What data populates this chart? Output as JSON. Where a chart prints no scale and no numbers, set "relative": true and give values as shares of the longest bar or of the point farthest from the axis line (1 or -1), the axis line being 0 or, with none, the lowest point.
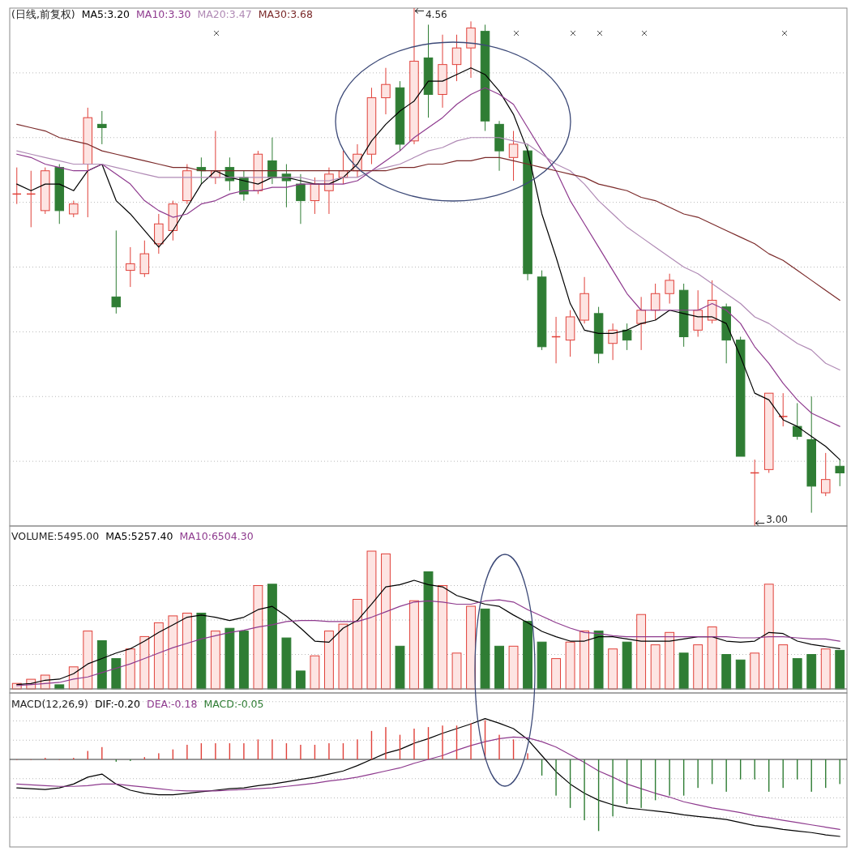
{
  "chart_data": [
    {
      "type": "candlestick",
      "title": "(日线,前复权)",
      "legend": "top left",
      "grid": true,
      "categories": [
        null,
        null,
        null,
        null,
        null,
        null,
        null,
        null,
        null,
        null,
        null,
        null,
        null,
        null,
        null,
        null,
        null,
        null,
        null,
        null,
        null,
        null,
        null,
        null,
        null,
        null,
        null,
        null,
        null,
        null,
        null,
        null,
        null,
        null,
        null,
        null,
        null,
        null,
        null,
        null,
        null,
        null,
        null,
        null,
        null,
        null,
        null,
        null,
        null,
        null,
        null,
        null,
        null,
        null,
        null,
        null,
        null,
        null,
        null
      ],
      "ohlc": [
        [
          4.0,
          4.08,
          3.97,
          4.0
        ],
        [
          4.0,
          4.07,
          3.9,
          4.0
        ],
        [
          3.95,
          4.08,
          3.94,
          4.07
        ],
        [
          4.08,
          4.09,
          3.91,
          3.95
        ],
        [
          3.94,
          3.98,
          3.93,
          3.97
        ],
        [
          4.09,
          4.26,
          3.93,
          4.23
        ],
        [
          4.21,
          4.25,
          4.15,
          4.2
        ],
        [
          3.69,
          3.89,
          3.64,
          3.66
        ],
        [
          3.77,
          3.84,
          3.72,
          3.79
        ],
        [
          3.76,
          3.86,
          3.75,
          3.82
        ],
        [
          3.85,
          3.94,
          3.82,
          3.91
        ],
        [
          3.89,
          3.98,
          3.86,
          3.97
        ],
        [
          3.98,
          4.09,
          3.97,
          4.07
        ],
        [
          4.08,
          4.11,
          4.03,
          4.07
        ],
        [
          4.05,
          4.19,
          4.03,
          4.07
        ],
        [
          4.08,
          4.11,
          4.01,
          4.04
        ],
        [
          4.05,
          4.07,
          3.98,
          4.0
        ],
        [
          4.01,
          4.13,
          4.0,
          4.12
        ],
        [
          4.1,
          4.17,
          4.03,
          4.05
        ],
        [
          4.06,
          4.09,
          3.96,
          4.04
        ],
        [
          4.03,
          4.06,
          3.91,
          3.98
        ],
        [
          3.98,
          4.05,
          3.94,
          4.03
        ],
        [
          4.01,
          4.08,
          3.94,
          4.06
        ],
        [
          4.05,
          4.13,
          4.03,
          4.07
        ],
        [
          4.07,
          4.15,
          4.05,
          4.12
        ],
        [
          4.12,
          4.32,
          4.09,
          4.29
        ],
        [
          4.29,
          4.38,
          4.24,
          4.33
        ],
        [
          4.32,
          4.34,
          4.13,
          4.15
        ],
        [
          4.16,
          4.56,
          4.15,
          4.4
        ],
        [
          4.41,
          4.51,
          4.23,
          4.3
        ],
        [
          4.3,
          4.48,
          4.26,
          4.39
        ],
        [
          4.39,
          4.48,
          4.34,
          4.44
        ],
        [
          4.44,
          4.52,
          4.35,
          4.5
        ],
        [
          4.49,
          4.51,
          4.19,
          4.22
        ],
        [
          4.21,
          4.22,
          4.07,
          4.13
        ],
        [
          4.11,
          4.19,
          4.04,
          4.15
        ],
        [
          4.13,
          4.15,
          3.74,
          3.76
        ],
        [
          3.75,
          3.77,
          3.53,
          3.54
        ],
        [
          3.57,
          3.63,
          3.49,
          3.57
        ],
        [
          3.56,
          3.65,
          3.51,
          3.63
        ],
        [
          3.62,
          3.75,
          3.61,
          3.7
        ],
        [
          3.64,
          3.66,
          3.49,
          3.52
        ],
        [
          3.55,
          3.61,
          3.5,
          3.59
        ],
        [
          3.59,
          3.61,
          3.53,
          3.56
        ],
        [
          3.61,
          3.69,
          3.53,
          3.65
        ],
        [
          3.65,
          3.73,
          3.62,
          3.7
        ],
        [
          3.7,
          3.76,
          3.67,
          3.74
        ],
        [
          3.71,
          3.73,
          3.54,
          3.57
        ],
        [
          3.59,
          3.71,
          3.57,
          3.65
        ],
        [
          3.62,
          3.74,
          3.61,
          3.68
        ],
        [
          3.66,
          3.67,
          3.49,
          3.56
        ],
        [
          3.56,
          3.57,
          3.21,
          3.21
        ],
        [
          3.16,
          3.2,
          3.0,
          3.16
        ],
        [
          3.17,
          3.4,
          3.16,
          3.4
        ],
        [
          3.33,
          3.4,
          3.3,
          3.33
        ],
        [
          3.3,
          3.37,
          3.26,
          3.27
        ],
        [
          3.26,
          3.39,
          3.04,
          3.12
        ],
        [
          3.1,
          3.22,
          3.09,
          3.14
        ],
        [
          3.18,
          3.2,
          3.12,
          3.16
        ]
      ],
      "series": [
        {
          "type": "line",
          "name": "MA5:3.20",
          "color": "#000000",
          "values": [
            4.03,
            4.01,
            4.03,
            4.03,
            4.01,
            4.07,
            4.09,
            3.98,
            3.94,
            3.89,
            3.84,
            3.89,
            3.96,
            4.03,
            4.07,
            4.05,
            4.04,
            4.03,
            4.05,
            4.05,
            4.04,
            4.03,
            4.03,
            4.05,
            4.09,
            4.16,
            4.21,
            4.25,
            4.28,
            4.34,
            4.34,
            4.36,
            4.38,
            4.36,
            4.31,
            4.24,
            4.13,
            3.94,
            3.81,
            3.67,
            3.59,
            3.58,
            3.58,
            3.59,
            3.61,
            3.62,
            3.65,
            3.64,
            3.63,
            3.63,
            3.61,
            3.51,
            3.4,
            3.38,
            3.32,
            3.3,
            3.27,
            3.24,
            3.2
          ]
        },
        {
          "type": "line",
          "name": "MA10:3.30",
          "color": "#8e3a8e",
          "values": [
            4.12,
            4.11,
            4.09,
            4.08,
            4.07,
            4.07,
            4.09,
            4.06,
            4.03,
            3.98,
            3.95,
            3.93,
            3.94,
            3.97,
            3.98,
            4.0,
            4.01,
            4.01,
            4.02,
            4.02,
            4.03,
            4.03,
            4.03,
            4.03,
            4.04,
            4.07,
            4.1,
            4.13,
            4.17,
            4.2,
            4.23,
            4.27,
            4.3,
            4.32,
            4.3,
            4.27,
            4.2,
            4.13,
            4.07,
            3.98,
            3.91,
            3.84,
            3.77,
            3.7,
            3.65,
            3.65,
            3.65,
            3.65,
            3.65,
            3.67,
            3.65,
            3.61,
            3.54,
            3.49,
            3.43,
            3.38,
            3.34,
            3.32,
            3.3
          ]
        },
        {
          "type": "line",
          "name": "MA20:3.47",
          "color": "#b08ab5",
          "values": [
            4.13,
            4.12,
            4.11,
            4.1,
            4.09,
            4.09,
            4.09,
            4.08,
            4.07,
            4.06,
            4.05,
            4.05,
            4.05,
            4.05,
            4.05,
            4.05,
            4.05,
            4.05,
            4.05,
            4.05,
            4.05,
            4.04,
            4.04,
            4.05,
            4.05,
            4.07,
            4.08,
            4.09,
            4.11,
            4.13,
            4.14,
            4.16,
            4.17,
            4.17,
            4.17,
            4.16,
            4.15,
            4.12,
            4.09,
            4.07,
            4.03,
            3.98,
            3.94,
            3.9,
            3.87,
            3.84,
            3.81,
            3.78,
            3.76,
            3.73,
            3.7,
            3.67,
            3.63,
            3.61,
            3.58,
            3.55,
            3.53,
            3.49,
            3.47
          ]
        },
        {
          "type": "line",
          "name": "MA30:3.68",
          "color": "#7b2a2a",
          "values": [
            4.21,
            4.2,
            4.19,
            4.17,
            4.16,
            4.15,
            4.13,
            4.12,
            4.11,
            4.1,
            4.09,
            4.08,
            4.08,
            4.07,
            4.07,
            4.07,
            4.07,
            4.07,
            4.07,
            4.07,
            4.07,
            4.07,
            4.07,
            4.07,
            4.07,
            4.07,
            4.07,
            4.08,
            4.08,
            4.09,
            4.09,
            4.1,
            4.1,
            4.11,
            4.11,
            4.1,
            4.09,
            4.08,
            4.07,
            4.06,
            4.05,
            4.03,
            4.02,
            4.01,
            3.99,
            3.98,
            3.96,
            3.94,
            3.93,
            3.91,
            3.89,
            3.87,
            3.85,
            3.82,
            3.8,
            3.77,
            3.74,
            3.71,
            3.68
          ]
        }
      ],
      "annotations": [
        "4.56",
        "3.00"
      ]
    },
    {
      "type": "bar",
      "title": "VOLUME:5495.00",
      "grid": true,
      "relative": true,
      "categories": [
        null,
        null,
        null,
        null,
        null,
        null,
        null,
        null,
        null,
        null,
        null,
        null,
        null,
        null,
        null,
        null,
        null,
        null,
        null,
        null,
        null,
        null,
        null,
        null,
        null,
        null,
        null,
        null,
        null,
        null,
        null,
        null,
        null,
        null,
        null,
        null,
        null,
        null,
        null,
        null,
        null,
        null,
        null,
        null,
        null,
        null,
        null,
        null,
        null,
        null,
        null,
        null,
        null,
        null,
        null,
        null,
        null,
        null,
        null
      ],
      "series": [
        {
          "values": [
            0.04,
            0.07,
            0.1,
            0.03,
            0.16,
            0.42,
            0.35,
            0.22,
            0.29,
            0.38,
            0.48,
            0.53,
            0.55,
            0.55,
            0.42,
            0.44,
            0.42,
            0.75,
            0.76,
            0.37,
            0.13,
            0.24,
            0.42,
            0.47,
            0.65,
            1,
            0.98,
            0.31,
            0.64,
            0.85,
            0.75,
            0.26,
            0.6,
            0.58,
            0.31,
            0.31,
            0.49,
            0.34,
            0.22,
            0.34,
            0.42,
            0.42,
            0.29,
            0.34,
            0.54,
            0.32,
            0.41,
            0.26,
            0.32,
            0.45,
            0.25,
            0.21,
            0.26,
            0.76,
            0.32,
            0.22,
            0.25,
            0.29,
            0.28
          ],
          "colors": [
            "#e0413a",
            "#e0413a",
            "#e0413a",
            "#2f7d34",
            "#e0413a",
            "#e0413a",
            "#2f7d34",
            "#2f7d34",
            "#e0413a",
            "#e0413a",
            "#e0413a",
            "#e0413a",
            "#e0413a",
            "#2f7d34",
            "#e0413a",
            "#2f7d34",
            "#2f7d34",
            "#e0413a",
            "#2f7d34",
            "#2f7d34",
            "#2f7d34",
            "#e0413a",
            "#e0413a",
            "#e0413a",
            "#e0413a",
            "#e0413a",
            "#e0413a",
            "#2f7d34",
            "#e0413a",
            "#2f7d34",
            "#e0413a",
            "#e0413a",
            "#e0413a",
            "#2f7d34",
            "#2f7d34",
            "#e0413a",
            "#2f7d34",
            "#2f7d34",
            "#e0413a",
            "#e0413a",
            "#e0413a",
            "#2f7d34",
            "#e0413a",
            "#2f7d34",
            "#e0413a",
            "#e0413a",
            "#e0413a",
            "#2f7d34",
            "#e0413a",
            "#e0413a",
            "#2f7d34",
            "#2f7d34",
            "#e0413a",
            "#e0413a",
            "#e0413a",
            "#2f7d34",
            "#2f7d34",
            "#e0413a",
            "#2f7d34"
          ]
        }
      ]
    },
    {
      "type": "line",
      "legend": "top left",
      "relative": true,
      "categories": [
        null,
        null,
        null,
        null,
        null,
        null,
        null,
        null,
        null,
        null,
        null,
        null,
        null,
        null,
        null,
        null,
        null,
        null,
        null,
        null,
        null,
        null,
        null,
        null,
        null,
        null,
        null,
        null,
        null,
        null,
        null,
        null,
        null,
        null,
        null,
        null,
        null,
        null,
        null,
        null,
        null,
        null,
        null,
        null,
        null,
        null,
        null,
        null,
        null,
        null,
        null,
        null,
        null,
        null,
        null,
        null,
        null,
        null,
        null
      ],
      "series": [
        {
          "name": "MA5:5257.40",
          "color": "#000000",
          "values": [
            0.04,
            0.05,
            0.08,
            0.09,
            0.14,
            0.23,
            0.28,
            0.33,
            0.37,
            0.44,
            0.52,
            0.59,
            0.66,
            0.68,
            0.66,
            0.63,
            0.66,
            0.73,
            0.76,
            0.67,
            0.56,
            0.44,
            0.43,
            0.56,
            0.63,
            0.78,
            0.94,
            0.96,
            1,
            0.96,
            0.94,
            0.86,
            0.82,
            0.78,
            0.76,
            0.68,
            0.61,
            0.53,
            0.48,
            0.44,
            0.44,
            0.48,
            0.48,
            0.46,
            0.44,
            0.44,
            0.44,
            0.46,
            0.48,
            0.48,
            0.44,
            0.43,
            0.44,
            0.52,
            0.51,
            0.44,
            0.41,
            0.39,
            0.37
          ]
        },
        {
          "name": "MA10:6504.30",
          "color": "#8e3a8e",
          "values": [
            0.03,
            0.04,
            0.05,
            0.06,
            0.09,
            0.11,
            0.15,
            0.19,
            0.23,
            0.28,
            0.33,
            0.38,
            0.42,
            0.46,
            0.49,
            0.52,
            0.54,
            0.57,
            0.59,
            0.62,
            0.63,
            0.63,
            0.62,
            0.62,
            0.62,
            0.66,
            0.71,
            0.76,
            0.8,
            0.81,
            0.8,
            0.78,
            0.78,
            0.81,
            0.82,
            0.8,
            0.73,
            0.67,
            0.61,
            0.56,
            0.52,
            0.51,
            0.49,
            0.48,
            0.48,
            0.48,
            0.48,
            0.48,
            0.48,
            0.48,
            0.48,
            0.47,
            0.47,
            0.48,
            0.48,
            0.47,
            0.46,
            0.46,
            0.44
          ]
        }
      ]
    },
    {
      "type": "bar",
      "title": "MACD(12,26,9)",
      "legend": "top left",
      "grid": true,
      "relative": true,
      "categories": [
        null,
        null,
        null,
        null,
        null,
        null,
        null,
        null,
        null,
        null,
        null,
        null,
        null,
        null,
        null,
        null,
        null,
        null,
        null,
        null,
        null,
        null,
        null,
        null,
        null,
        null,
        null,
        null,
        null,
        null,
        null,
        null,
        null,
        null,
        null,
        null,
        null,
        null,
        null,
        null,
        null,
        null,
        null,
        null,
        null,
        null,
        null,
        null,
        null,
        null,
        null,
        null,
        null,
        null,
        null,
        null,
        null,
        null,
        null
      ],
      "series": [
        {
          "type": "line",
          "name": "DIF:-0.20",
          "color": "#000000",
          "values": [
            -0.37,
            -0.38,
            -0.39,
            -0.37,
            -0.32,
            -0.23,
            -0.19,
            -0.32,
            -0.4,
            -0.44,
            -0.46,
            -0.46,
            -0.44,
            -0.42,
            -0.4,
            -0.38,
            -0.37,
            -0.34,
            -0.32,
            -0.29,
            -0.26,
            -0.23,
            -0.19,
            -0.15,
            -0.08,
            0,
            0.08,
            0.13,
            0.21,
            0.27,
            0.34,
            0.4,
            0.46,
            0.53,
            0.47,
            0.4,
            0.26,
            0.05,
            -0.16,
            -0.32,
            -0.44,
            -0.53,
            -0.59,
            -0.63,
            -0.65,
            -0.67,
            -0.69,
            -0.72,
            -0.74,
            -0.76,
            -0.78,
            -0.82,
            -0.86,
            -0.88,
            -0.91,
            -0.93,
            -0.95,
            -0.98,
            -1
          ]
        },
        {
          "type": "line",
          "name": "DEA:-0.18",
          "color": "#8e3a8e",
          "values": [
            -0.32,
            -0.33,
            -0.34,
            -0.35,
            -0.35,
            -0.34,
            -0.32,
            -0.32,
            -0.34,
            -0.36,
            -0.38,
            -0.4,
            -0.41,
            -0.41,
            -0.41,
            -0.4,
            -0.39,
            -0.38,
            -0.37,
            -0.35,
            -0.33,
            -0.31,
            -0.28,
            -0.26,
            -0.23,
            -0.19,
            -0.15,
            -0.11,
            -0.05,
            0,
            0.05,
            0.12,
            0.18,
            0.23,
            0.27,
            0.29,
            0.28,
            0.23,
            0.16,
            0.06,
            -0.04,
            -0.15,
            -0.23,
            -0.32,
            -0.38,
            -0.44,
            -0.49,
            -0.55,
            -0.59,
            -0.63,
            -0.66,
            -0.69,
            -0.73,
            -0.76,
            -0.79,
            -0.82,
            -0.85,
            -0.88,
            -0.91
          ]
        },
        {
          "name": "MACD:-0.05",
          "values": [
            0,
            0,
            0.02,
            0,
            0.02,
            0.11,
            0.16,
            -0.03,
            -0.02,
            0.03,
            0.08,
            0.13,
            0.19,
            0.21,
            0.21,
            0.21,
            0.21,
            0.26,
            0.26,
            0.21,
            0.19,
            0.19,
            0.21,
            0.21,
            0.26,
            0.37,
            0.42,
            0.32,
            0.4,
            0.42,
            0.44,
            0.44,
            0.47,
            0.51,
            0.32,
            0.26,
            0.08,
            -0.21,
            -0.47,
            -0.63,
            -0.79,
            -0.93,
            -0.74,
            -0.58,
            -0.63,
            -0.53,
            -0.47,
            -0.47,
            -0.37,
            -0.32,
            -0.42,
            -0.26,
            -0.26,
            -0.42,
            -0.37,
            -0.26,
            -0.42,
            -0.37,
            -0.32
          ],
          "colors": [
            "#e0413a",
            "#e0413a",
            "#e0413a",
            "#e0413a",
            "#e0413a",
            "#e0413a",
            "#e0413a",
            "#2f7d34",
            "#2f7d34",
            "#e0413a",
            "#e0413a",
            "#e0413a",
            "#e0413a",
            "#e0413a",
            "#e0413a",
            "#e0413a",
            "#e0413a",
            "#e0413a",
            "#e0413a",
            "#e0413a",
            "#e0413a",
            "#e0413a",
            "#e0413a",
            "#e0413a",
            "#e0413a",
            "#e0413a",
            "#e0413a",
            "#e0413a",
            "#e0413a",
            "#e0413a",
            "#e0413a",
            "#e0413a",
            "#e0413a",
            "#e0413a",
            "#e0413a",
            "#e0413a",
            "#e0413a",
            "#2f7d34",
            "#2f7d34",
            "#2f7d34",
            "#2f7d34",
            "#2f7d34",
            "#2f7d34",
            "#2f7d34",
            "#2f7d34",
            "#2f7d34",
            "#2f7d34",
            "#2f7d34",
            "#2f7d34",
            "#2f7d34",
            "#2f7d34",
            "#2f7d34",
            "#2f7d34",
            "#2f7d34",
            "#2f7d34",
            "#2f7d34",
            "#2f7d34",
            "#2f7d34",
            "#2f7d34"
          ]
        }
      ]
    }
  ]
}
